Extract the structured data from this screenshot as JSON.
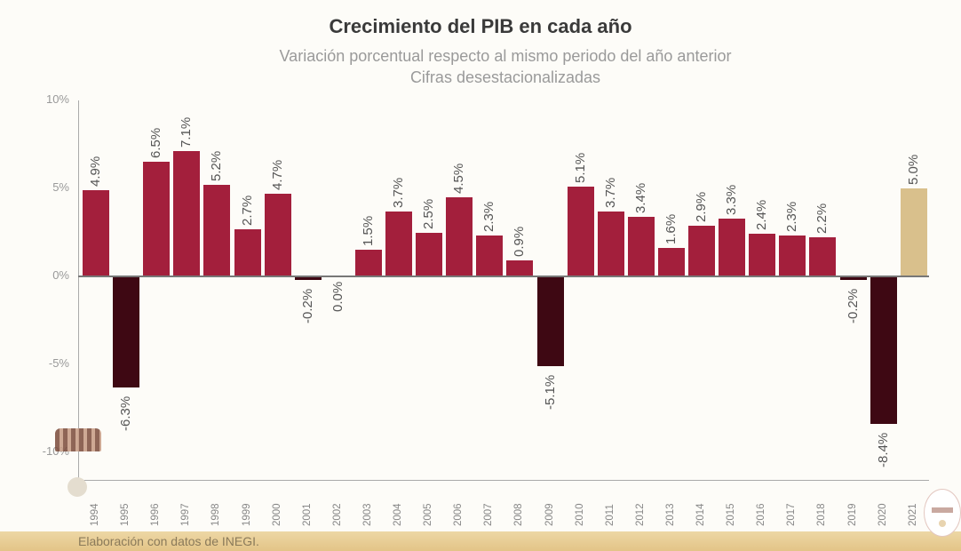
{
  "header": {
    "title": "Crecimiento del PIB en cada año",
    "subtitle_1": "Variación porcentual respecto al mismo periodo del año anterior",
    "subtitle_2": "Cifras desestacionalizadas"
  },
  "footer": {
    "source": "Elaboración con datos de INEGI."
  },
  "colors": {
    "positive": "#a31f3c",
    "negative": "#3e0813",
    "highlight": "#d9c08c"
  },
  "y_ticks": [
    "10%",
    "5%",
    "0%",
    "-5%",
    "-10%"
  ],
  "chart_data": {
    "type": "bar",
    "title": "Crecimiento del PIB en cada año",
    "subtitle": "Variación porcentual respecto al mismo periodo del año anterior / Cifras desestacionalizadas",
    "xlabel": "",
    "ylabel": "",
    "ylim": [
      -11,
      10
    ],
    "y_ticks": [
      10,
      5,
      0,
      -5,
      -10
    ],
    "grid": false,
    "legend": null,
    "categories": [
      "1994",
      "1995",
      "1996",
      "1997",
      "1998",
      "1999",
      "2000",
      "2001",
      "2002",
      "2003",
      "2004",
      "2005",
      "2006",
      "2007",
      "2008",
      "2009",
      "2010",
      "2011",
      "2012",
      "2013",
      "2014",
      "2015",
      "2016",
      "2017",
      "2018",
      "2019",
      "2020",
      "2021"
    ],
    "values": [
      4.9,
      -6.3,
      6.5,
      7.1,
      5.2,
      2.7,
      4.7,
      -0.2,
      0.0,
      1.5,
      3.7,
      2.5,
      4.5,
      2.3,
      0.9,
      -5.1,
      5.1,
      3.7,
      3.4,
      1.6,
      2.9,
      3.3,
      2.4,
      2.3,
      2.2,
      -0.2,
      -8.4,
      5.0
    ],
    "labels": [
      "4.9%",
      "-6.3%",
      "6.5%",
      "7.1%",
      "5.2%",
      "2.7%",
      "4.7%",
      "-0.2%",
      "0.0%",
      "1.5%",
      "3.7%",
      "2.5%",
      "4.5%",
      "2.3%",
      "0.9%",
      "-5.1%",
      "5.1%",
      "3.7%",
      "3.4%",
      "1.6%",
      "2.9%",
      "3.3%",
      "2.4%",
      "2.3%",
      "2.2%",
      "-0.2%",
      "-8.4%",
      "5.0%"
    ],
    "annotations": [
      "2021 bar highlighted in gold"
    ],
    "source": "Elaboración con datos de INEGI."
  }
}
